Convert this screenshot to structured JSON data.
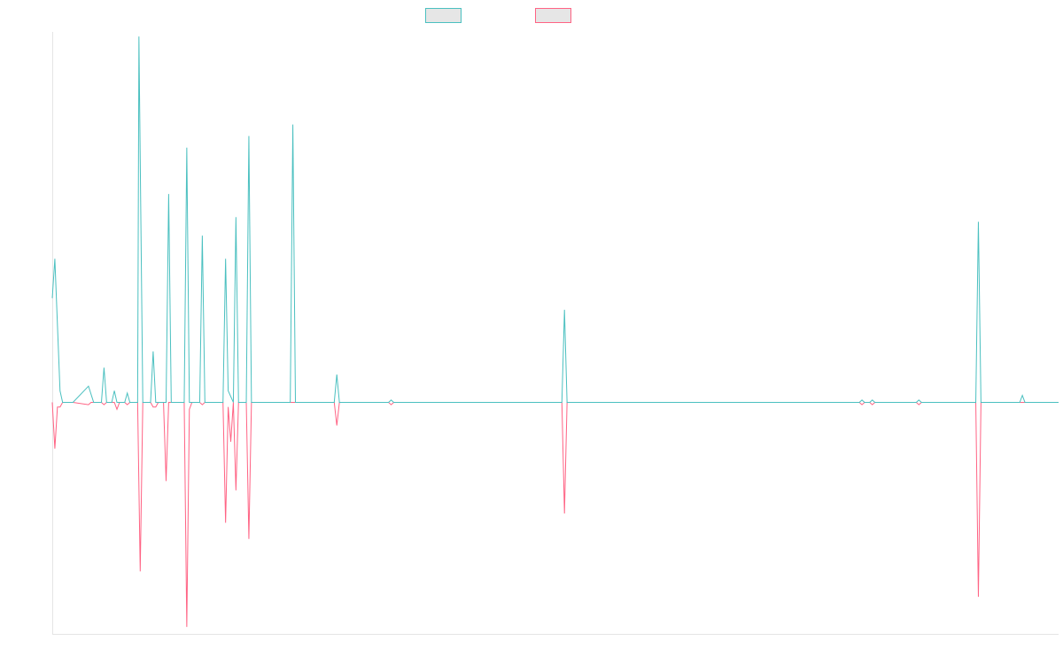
{
  "chart_data": {
    "type": "line",
    "title": "",
    "xlabel": "",
    "ylabel": "",
    "grid": false,
    "legend_position": "top-center",
    "x_range": [
      0,
      389
    ],
    "ylim": [
      -1.0,
      1.6
    ],
    "series": [
      {
        "name": "",
        "color": "#4bc0c0",
        "fill": "#e6e6e6",
        "points": [
          [
            0,
            0.45
          ],
          [
            1,
            0.62
          ],
          [
            3,
            0.05
          ],
          [
            4,
            0
          ],
          [
            8,
            0
          ],
          [
            14,
            0.07
          ],
          [
            16,
            0
          ],
          [
            19,
            0
          ],
          [
            20,
            0.15
          ],
          [
            21,
            0
          ],
          [
            23,
            0
          ],
          [
            24,
            0.05
          ],
          [
            25,
            0
          ],
          [
            28,
            0
          ],
          [
            29,
            0.04
          ],
          [
            30,
            0
          ],
          [
            33,
            0
          ],
          [
            33.5,
            1.58
          ],
          [
            35,
            0
          ],
          [
            38,
            0
          ],
          [
            39,
            0.22
          ],
          [
            40,
            0
          ],
          [
            42,
            0
          ],
          [
            43,
            0
          ],
          [
            44,
            0
          ],
          [
            45,
            0.9
          ],
          [
            46,
            0
          ],
          [
            51,
            0
          ],
          [
            52,
            1.1
          ],
          [
            53,
            0
          ],
          [
            57,
            0
          ],
          [
            58,
            0.72
          ],
          [
            59,
            0
          ],
          [
            66,
            0
          ],
          [
            67,
            0.62
          ],
          [
            68,
            0.05
          ],
          [
            70,
            0
          ],
          [
            71,
            0.8
          ],
          [
            72,
            0
          ],
          [
            75,
            0
          ],
          [
            76,
            1.15
          ],
          [
            77,
            0
          ],
          [
            92,
            0
          ],
          [
            93,
            1.2
          ],
          [
            94,
            0
          ],
          [
            109,
            0
          ],
          [
            110,
            0.12
          ],
          [
            111,
            0
          ],
          [
            130,
            0
          ],
          [
            131,
            0.01
          ],
          [
            132,
            0
          ],
          [
            197,
            0
          ],
          [
            198,
            0.4
          ],
          [
            199,
            0
          ],
          [
            312,
            0
          ],
          [
            313,
            0.01
          ],
          [
            314,
            0
          ],
          [
            316,
            0
          ],
          [
            317,
            0.01
          ],
          [
            318,
            0
          ],
          [
            334,
            0
          ],
          [
            335,
            0.01
          ],
          [
            336,
            0
          ],
          [
            357,
            0
          ],
          [
            358,
            0.78
          ],
          [
            359,
            0
          ],
          [
            374,
            0
          ],
          [
            375,
            0.03
          ],
          [
            376,
            0
          ],
          [
            389,
            0
          ]
        ]
      },
      {
        "name": "",
        "color": "#ff6384",
        "fill": "#e6e6e6",
        "points": [
          [
            0,
            0
          ],
          [
            1,
            -0.2
          ],
          [
            2,
            -0.02
          ],
          [
            3,
            -0.02
          ],
          [
            4,
            0
          ],
          [
            8,
            0
          ],
          [
            14,
            -0.01
          ],
          [
            15,
            0
          ],
          [
            19,
            0
          ],
          [
            20,
            -0.01
          ],
          [
            21,
            0
          ],
          [
            24,
            0
          ],
          [
            25,
            -0.03
          ],
          [
            26,
            0
          ],
          [
            28,
            0
          ],
          [
            29,
            -0.01
          ],
          [
            30,
            0
          ],
          [
            33,
            0
          ],
          [
            34,
            -0.73
          ],
          [
            35,
            0
          ],
          [
            38,
            0
          ],
          [
            39,
            -0.02
          ],
          [
            40,
            -0.02
          ],
          [
            41,
            0
          ],
          [
            43,
            0
          ],
          [
            44,
            -0.34
          ],
          [
            45,
            0
          ],
          [
            51,
            0
          ],
          [
            52,
            -0.97
          ],
          [
            53,
            -0.03
          ],
          [
            54,
            0
          ],
          [
            57,
            0
          ],
          [
            58,
            -0.01
          ],
          [
            59,
            0
          ],
          [
            66,
            0
          ],
          [
            67,
            -0.52
          ],
          [
            68,
            -0.02
          ],
          [
            69,
            -0.17
          ],
          [
            70,
            0
          ],
          [
            71,
            -0.38
          ],
          [
            72,
            0
          ],
          [
            75,
            0
          ],
          [
            76,
            -0.59
          ],
          [
            77,
            0
          ],
          [
            109,
            0
          ],
          [
            110,
            -0.1
          ],
          [
            111,
            0
          ],
          [
            130,
            0
          ],
          [
            131,
            -0.01
          ],
          [
            132,
            0
          ],
          [
            197,
            0
          ],
          [
            198,
            -0.48
          ],
          [
            199,
            0
          ],
          [
            312,
            0
          ],
          [
            313,
            -0.01
          ],
          [
            314,
            0
          ],
          [
            316,
            0
          ],
          [
            317,
            -0.01
          ],
          [
            318,
            0
          ],
          [
            334,
            0
          ],
          [
            335,
            -0.01
          ],
          [
            336,
            0
          ],
          [
            357,
            0
          ],
          [
            358,
            -0.84
          ],
          [
            359,
            0
          ],
          [
            389,
            0
          ]
        ]
      }
    ]
  }
}
